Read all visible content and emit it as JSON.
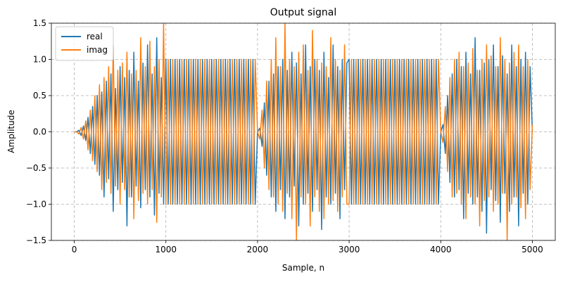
{
  "chart_data": {
    "type": "line",
    "title": "Output signal",
    "x_label": "Sample, n",
    "y_label": "Amplitude",
    "xlim": [
      -250,
      5250
    ],
    "ylim": [
      -1.5,
      1.5
    ],
    "xticks": [
      0,
      1000,
      2000,
      3000,
      4000,
      5000
    ],
    "yticks": [
      {
        "value": -1.5,
        "label": "−1.5"
      },
      {
        "value": -1,
        "label": "−1.0"
      },
      {
        "value": -0.5,
        "label": "−0.5"
      },
      {
        "value": 0,
        "label": "0.0"
      },
      0.5,
      {
        "value": 1,
        "label": "1.0"
      },
      1.5
    ],
    "grid": true,
    "legend": "upper left",
    "x": [
      0,
      25,
      50,
      75,
      100,
      125,
      150,
      175,
      200,
      225,
      250,
      275,
      300,
      325,
      350,
      375,
      400,
      425,
      450,
      475,
      500,
      525,
      550,
      575,
      600,
      625,
      650,
      675,
      700,
      725,
      750,
      775,
      800,
      825,
      850,
      875,
      900,
      925,
      950,
      975,
      1000,
      1025,
      1050,
      1075,
      1100,
      1125,
      1150,
      1175,
      1200,
      1225,
      1250,
      1275,
      1300,
      1325,
      1350,
      1375,
      1400,
      1425,
      1450,
      1475,
      1500,
      1525,
      1550,
      1575,
      1600,
      1625,
      1650,
      1675,
      1700,
      1725,
      1750,
      1775,
      1800,
      1825,
      1850,
      1875,
      1900,
      1925,
      1950,
      1975,
      2000,
      2025,
      2050,
      2075,
      2100,
      2125,
      2150,
      2175,
      2200,
      2225,
      2250,
      2275,
      2300,
      2325,
      2350,
      2375,
      2400,
      2425,
      2450,
      2475,
      2500,
      2525,
      2550,
      2575,
      2600,
      2625,
      2650,
      2675,
      2700,
      2725,
      2750,
      2775,
      2800,
      2825,
      2850,
      2875,
      2900,
      2925,
      2950,
      2975,
      3000,
      3025,
      3050,
      3075,
      3100,
      3125,
      3150,
      3175,
      3200,
      3225,
      3250,
      3275,
      3300,
      3325,
      3350,
      3375,
      3400,
      3425,
      3450,
      3475,
      3500,
      3525,
      3550,
      3575,
      3600,
      3625,
      3650,
      3675,
      3700,
      3725,
      3750,
      3775,
      3800,
      3825,
      3850,
      3875,
      3900,
      3925,
      3950,
      3975,
      4000,
      4025,
      4050,
      4075,
      4100,
      4125,
      4150,
      4175,
      4200,
      4225,
      4250,
      4275,
      4300,
      4325,
      4350,
      4375,
      4400,
      4425,
      4450,
      4475,
      4500,
      4525,
      4550,
      4575,
      4600,
      4625,
      4650,
      4675,
      4700,
      4725,
      4750,
      4775,
      4800,
      4825,
      4850,
      4875,
      4900,
      4925,
      4950,
      4975,
      5000
    ],
    "series": [
      {
        "name": "real",
        "color": "#1f77b4",
        "values": [
          0,
          0,
          0.02,
          -0.05,
          0.08,
          -0.12,
          0.2,
          -0.3,
          0.35,
          -0.45,
          0.5,
          -0.6,
          0.55,
          -0.9,
          0.7,
          -0.65,
          0.8,
          -1.1,
          0.6,
          -0.8,
          0.9,
          -0.7,
          0.75,
          -1.3,
          0.85,
          -0.9,
          1.1,
          -0.75,
          0.7,
          -1.05,
          0.95,
          -0.8,
          1.2,
          -0.9,
          0.8,
          -1.15,
          1.3,
          -0.85,
          0.75,
          -1.0,
          1.0,
          -1,
          1,
          -1,
          1,
          -1,
          1,
          -1,
          1,
          -1,
          1,
          -1,
          1,
          -1,
          1,
          -1,
          1,
          -1,
          1,
          -1,
          1,
          -1,
          1,
          -1,
          1,
          -1,
          1,
          -1,
          1,
          -1,
          1,
          -1,
          1,
          -1,
          1,
          -1,
          1,
          -1,
          1,
          -1,
          0,
          0.05,
          -0.2,
          0.4,
          -0.6,
          0.7,
          -0.9,
          0.8,
          -1.1,
          0.9,
          -0.8,
          1.0,
          -1.2,
          0.85,
          -0.9,
          1.1,
          -0.75,
          0.95,
          -1.3,
          0.8,
          -1.0,
          1.2,
          -0.85,
          0.9,
          -1.1,
          1.0,
          -0.8,
          0.85,
          -1.35,
          1.1,
          -0.9,
          0.75,
          -1.0,
          1.2,
          -0.85,
          0.9,
          -1.2,
          1.0,
          -0.8,
          0.95,
          1,
          -1,
          1,
          -1,
          1,
          -1,
          1,
          -1,
          1,
          -1,
          1,
          -1,
          1,
          -1,
          1,
          -1,
          1,
          -1,
          1,
          -1,
          1,
          -1,
          1,
          -1,
          1,
          -1,
          1,
          -1,
          1,
          -1,
          1,
          -1,
          1,
          -1,
          1,
          -1,
          1,
          -1,
          1,
          -1,
          0,
          0.1,
          -0.3,
          0.5,
          -0.7,
          0.8,
          -0.9,
          1.0,
          -0.8,
          0.9,
          -1.2,
          1.1,
          -0.85,
          0.8,
          -1.0,
          1.3,
          -0.9,
          0.85,
          -1.1,
          0.95,
          -1.4,
          1.0,
          -0.8,
          1.2,
          -0.95,
          0.9,
          -1.25,
          1.05,
          -0.85,
          0.8,
          -1.1,
          1.2,
          -0.9,
          0.9,
          -1.3,
          1.0,
          -0.85,
          1.1,
          -1.0,
          0.9,
          0
        ]
      },
      {
        "name": "imag",
        "color": "#ff7f0e",
        "values": [
          0,
          0,
          -0.03,
          0.06,
          -0.1,
          0.15,
          -0.25,
          0.3,
          -0.4,
          0.5,
          -0.55,
          0.65,
          -0.8,
          0.75,
          -0.7,
          0.9,
          -0.85,
          1.2,
          -0.75,
          0.85,
          -1.0,
          0.95,
          -0.8,
          1.1,
          -0.9,
          0.8,
          -1.2,
          0.85,
          -0.95,
          1.3,
          -0.85,
          0.9,
          -1.0,
          1.25,
          -0.8,
          0.9,
          -1.25,
          1.0,
          -0.9,
          1.5,
          -1.0,
          1,
          -1,
          1,
          -1,
          1,
          -1,
          1,
          -1,
          1,
          -1,
          1,
          -1,
          1,
          -1,
          1,
          -1,
          1,
          -1,
          1,
          -1,
          1,
          -1,
          1,
          -1,
          1,
          -1,
          1,
          -1,
          1,
          -1,
          1,
          -1,
          1,
          -1,
          1,
          -1,
          1,
          -1,
          1,
          0,
          -0.1,
          0.3,
          -0.5,
          0.7,
          -0.8,
          1.0,
          -0.9,
          1.3,
          -1.0,
          0.9,
          -1.1,
          1.5,
          -0.85,
          1.0,
          -1.2,
          0.9,
          -1.5,
          1.1,
          -0.9,
          1.2,
          -1.0,
          0.85,
          -1.3,
          1.4,
          -0.9,
          1.0,
          -1.1,
          0.95,
          -1.2,
          0.9,
          -1.0,
          1.3,
          -0.95,
          1.0,
          -1.1,
          0.85,
          -0.9,
          1.2,
          -1.0,
          -1,
          1,
          -1,
          1,
          -1,
          1,
          -1,
          1,
          -1,
          1,
          -1,
          1,
          -1,
          1,
          -1,
          1,
          -1,
          1,
          -1,
          1,
          -1,
          1,
          -1,
          1,
          -1,
          1,
          -1,
          1,
          -1,
          1,
          -1,
          1,
          -1,
          1,
          -1,
          1,
          -1,
          1,
          -1,
          1,
          0,
          -0.15,
          0.35,
          -0.55,
          0.75,
          -0.9,
          1.0,
          -0.85,
          1.1,
          -1.0,
          0.9,
          -1.2,
          0.95,
          -0.9,
          1.15,
          -1.0,
          0.85,
          -1.3,
          1.0,
          -0.95,
          1.2,
          -0.9,
          1.05,
          -1.1,
          0.9,
          -1.0,
          1.3,
          -0.85,
          1.0,
          -1.5,
          0.95,
          -1.0,
          1.1,
          -0.9,
          1.2,
          -1.05,
          0.9,
          -1.2,
          1.0,
          -0.8,
          0.1
        ]
      }
    ]
  }
}
